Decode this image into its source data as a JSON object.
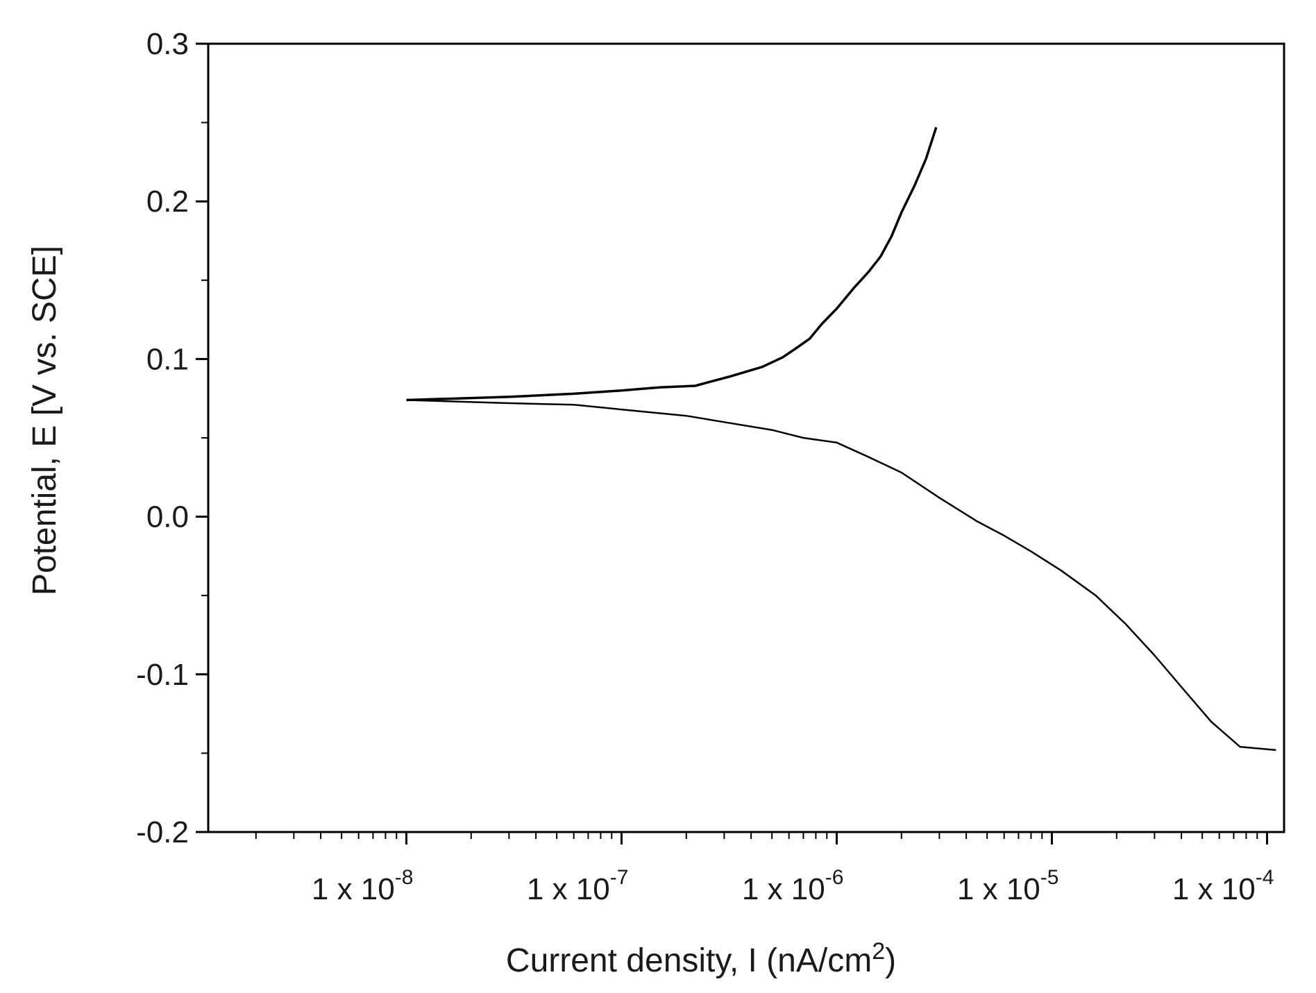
{
  "chart_data": {
    "type": "line",
    "title": "",
    "xlabel": "Current density, I (nA/cm",
    "xlabel_sup": "2",
    "xlabel_tail": ")",
    "ylabel": "Potential, E [V vs. SCE]",
    "x_scale": "log",
    "xlim": [
      1.2e-09,
      0.00012
    ],
    "ylim": [
      -0.2,
      0.3
    ],
    "y_ticks": [
      {
        "value": 0.3,
        "label": "0.3"
      },
      {
        "value": 0.2,
        "label": "0.2"
      },
      {
        "value": 0.1,
        "label": "0.1"
      },
      {
        "value": 0.0,
        "label": "0.0"
      },
      {
        "value": -0.1,
        "label": "-0.1"
      },
      {
        "value": -0.2,
        "label": "-0.2"
      }
    ],
    "x_ticks": [
      {
        "value": 1e-08,
        "base": "1 x 10",
        "exp": "-8"
      },
      {
        "value": 1e-07,
        "base": "1 x 10",
        "exp": "-7"
      },
      {
        "value": 1e-06,
        "base": "1 x 10",
        "exp": "-6"
      },
      {
        "value": 1e-05,
        "base": "1 x 10",
        "exp": "-5"
      },
      {
        "value": 0.0001,
        "base": "1 x 10",
        "exp": "-4"
      }
    ],
    "grid": false,
    "legend": "none",
    "line_color": "#000000",
    "series": [
      {
        "name": "",
        "branch": "anodic",
        "x": [
          1e-08,
          3e-08,
          6e-08,
          1e-07,
          1.5e-07,
          2.2e-07,
          3.2e-07,
          4.5e-07,
          5.6e-07,
          6.5e-07,
          7.5e-07,
          8.5e-07,
          1e-06,
          1.2e-06,
          1.4e-06,
          1.6e-06,
          1.8e-06,
          2e-06,
          2.3e-06,
          2.6e-06,
          2.9e-06
        ],
        "y": [
          0.074,
          0.076,
          0.078,
          0.08,
          0.082,
          0.083,
          0.089,
          0.095,
          0.101,
          0.107,
          0.113,
          0.122,
          0.132,
          0.145,
          0.155,
          0.165,
          0.178,
          0.193,
          0.21,
          0.227,
          0.247
        ]
      },
      {
        "name": "",
        "branch": "cathodic",
        "x": [
          1e-08,
          3e-08,
          6e-08,
          1e-07,
          2e-07,
          3e-07,
          5e-07,
          7e-07,
          1e-06,
          1.4e-06,
          2e-06,
          3e-06,
          4.5e-06,
          6e-06,
          8e-06,
          1.1e-05,
          1.6e-05,
          2.2e-05,
          3e-05,
          4e-05,
          5.5e-05,
          7.5e-05,
          0.00011
        ],
        "y": [
          0.074,
          0.072,
          0.071,
          0.068,
          0.064,
          0.06,
          0.055,
          0.05,
          0.047,
          0.038,
          0.028,
          0.012,
          -0.003,
          -0.012,
          -0.022,
          -0.034,
          -0.05,
          -0.068,
          -0.088,
          -0.108,
          -0.13,
          -0.146,
          -0.148
        ]
      }
    ]
  }
}
